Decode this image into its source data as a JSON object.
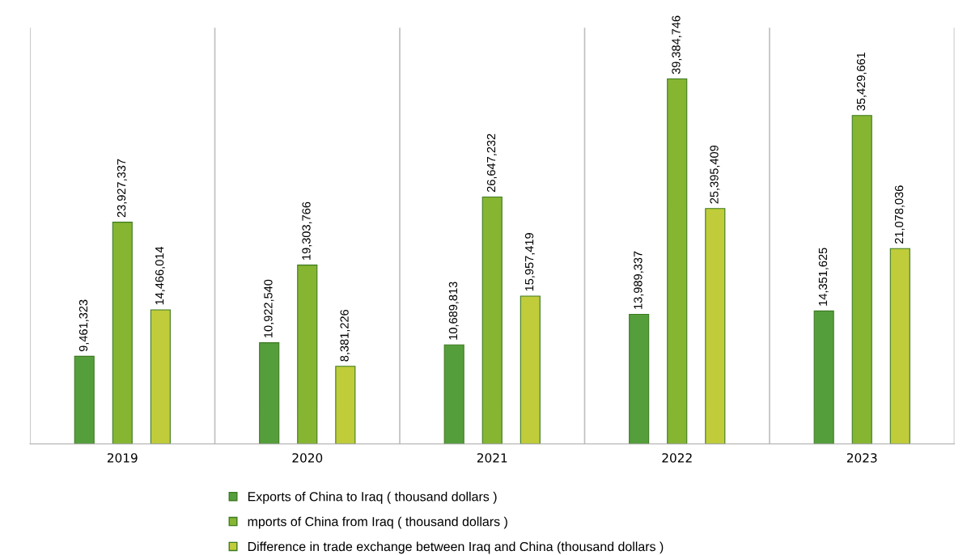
{
  "chart_data": {
    "type": "bar",
    "categories": [
      "2019",
      "2020",
      "2021",
      "2022",
      "2023"
    ],
    "series": [
      {
        "name": "Exports of China to Iraq ( thousand dollars )",
        "color": "#559e3c",
        "values": [
          9461323,
          10922540,
          10689813,
          13989337,
          14351625
        ],
        "value_labels": [
          "9,461,323",
          "10,922,540",
          "10,689,813",
          "13,989,337",
          "14,351,625"
        ]
      },
      {
        "name": "mports of China from Iraq ( thousand dollars )",
        "color": "#86b532",
        "values": [
          23927337,
          19303766,
          26647232,
          39384746,
          35429661
        ],
        "value_labels": [
          "23,927,337",
          "19,303,766",
          "26,647,232",
          "39,384,746",
          "35,429,661"
        ]
      },
      {
        "name": "Difference in trade exchange between Iraq and China (thousand dollars )",
        "color": "#c0cc3a",
        "values": [
          14466014,
          8381226,
          15957419,
          25395409,
          21078036
        ],
        "value_labels": [
          "14,466,014",
          "8,381,226",
          "15,957,419",
          "25,395,409",
          "21,078,036"
        ]
      }
    ],
    "grid": "x",
    "legend": "bottom",
    "tick_labels": "x"
  }
}
